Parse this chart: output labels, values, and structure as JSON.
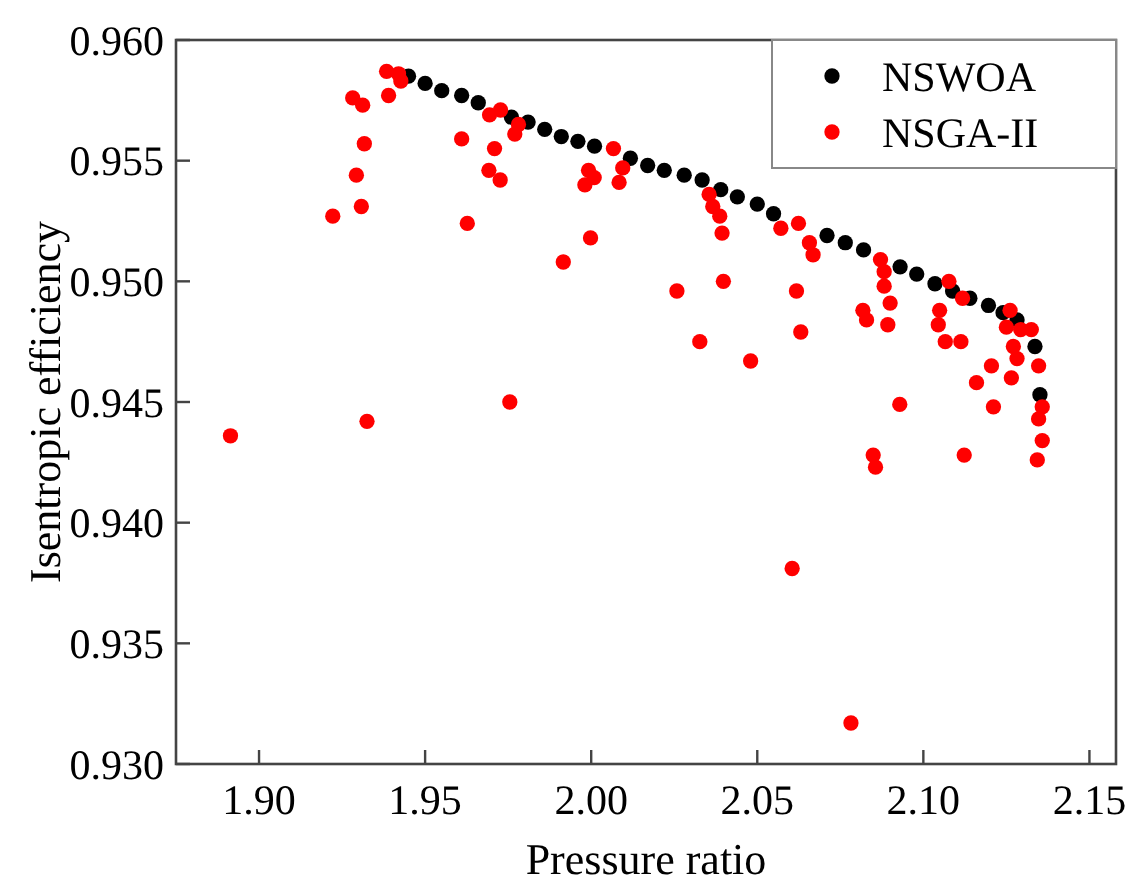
{
  "chart_data": {
    "type": "scatter",
    "xlabel": "Pressure ratio",
    "ylabel": "Isentropic efficiency",
    "xlim": [
      1.875,
      2.158
    ],
    "ylim": [
      0.93,
      0.96
    ],
    "xticks": [
      {
        "value": 1.9,
        "label": "1.90"
      },
      {
        "value": 1.95,
        "label": "1.95"
      },
      {
        "value": 2.0,
        "label": "2.00"
      },
      {
        "value": 2.05,
        "label": "2.05"
      },
      {
        "value": 2.1,
        "label": "2.10"
      },
      {
        "value": 2.15,
        "label": "2.15"
      }
    ],
    "yticks": [
      {
        "value": 0.93,
        "label": "0.930"
      },
      {
        "value": 0.935,
        "label": "0.935"
      },
      {
        "value": 0.94,
        "label": "0.940"
      },
      {
        "value": 0.945,
        "label": "0.945"
      },
      {
        "value": 0.95,
        "label": "0.950"
      },
      {
        "value": 0.955,
        "label": "0.955"
      },
      {
        "value": 0.96,
        "label": "0.960"
      }
    ],
    "grid": false,
    "legend": "top right",
    "marker": "circle",
    "series": [
      {
        "name": "NSWOA",
        "color": "#000000",
        "x": [
          1.945,
          1.95,
          1.955,
          1.961,
          1.966,
          1.976,
          1.981,
          1.986,
          1.991,
          1.996,
          2.001,
          2.0118,
          2.017,
          2.022,
          2.028,
          2.0334,
          2.039,
          2.044,
          2.05,
          2.0549,
          2.071,
          2.0765,
          2.082,
          2.093,
          2.098,
          2.1035,
          2.1088,
          2.114,
          2.1196,
          2.124,
          2.1282,
          2.1336,
          2.1351
        ],
        "values": [
          0.9585,
          0.9582,
          0.9579,
          0.9577,
          0.9574,
          0.9568,
          0.9566,
          0.9563,
          0.956,
          0.9558,
          0.9556,
          0.9551,
          0.9548,
          0.9546,
          0.9544,
          0.9542,
          0.9538,
          0.9535,
          0.9532,
          0.9528,
          0.9519,
          0.9516,
          0.9513,
          0.9506,
          0.9503,
          0.9499,
          0.9496,
          0.9493,
          0.949,
          0.9487,
          0.9484,
          0.9473,
          0.9453
        ]
      },
      {
        "name": "NSGA-II",
        "color": "#ff0000",
        "x": [
          1.8914,
          1.9222,
          1.9282,
          1.9312,
          1.9317,
          1.9293,
          1.9308,
          1.9325,
          1.9384,
          1.939,
          1.9427,
          1.942,
          1.961,
          1.9627,
          1.9709,
          1.9692,
          1.9726,
          1.9694,
          1.9727,
          1.9781,
          1.977,
          1.9755,
          1.9916,
          1.9998,
          1.9981,
          1.9992,
          2.0009,
          2.0067,
          2.0084,
          2.0095,
          2.0355,
          2.0366,
          2.0387,
          2.0394,
          2.0258,
          2.0398,
          2.0327,
          2.048,
          2.0571,
          2.0624,
          2.0657,
          2.0668,
          2.0618,
          2.0631,
          2.0871,
          2.0882,
          2.0882,
          2.09,
          2.0818,
          2.0829,
          2.0893,
          2.1049,
          2.1045,
          2.1066,
          2.1113,
          2.1077,
          2.1118,
          2.1205,
          2.116,
          2.1211,
          2.1265,
          2.0929,
          2.1261,
          2.125,
          2.1293,
          2.1325,
          2.1271,
          2.1282,
          2.1347,
          2.1358,
          2.1347,
          2.1358,
          2.1343,
          2.0849,
          2.0856,
          2.1123,
          2.0605,
          2.0782
        ],
        "values": [
          0.9436,
          0.9527,
          0.9576,
          0.9573,
          0.9557,
          0.9544,
          0.9531,
          0.9442,
          0.9587,
          0.9577,
          0.9583,
          0.9586,
          0.9559,
          0.9524,
          0.9555,
          0.9546,
          0.9542,
          0.9569,
          0.9571,
          0.9565,
          0.9561,
          0.945,
          0.9508,
          0.9518,
          0.954,
          0.9546,
          0.9543,
          0.9555,
          0.9541,
          0.9547,
          0.9536,
          0.9531,
          0.9527,
          0.952,
          0.9496,
          0.95,
          0.9475,
          0.9467,
          0.9522,
          0.9524,
          0.9516,
          0.9511,
          0.9496,
          0.9479,
          0.9509,
          0.9504,
          0.9498,
          0.9491,
          0.9488,
          0.9484,
          0.9482,
          0.9488,
          0.9482,
          0.9475,
          0.9475,
          0.95,
          0.9493,
          0.9465,
          0.9458,
          0.9448,
          0.946,
          0.9449,
          0.9488,
          0.9481,
          0.948,
          0.948,
          0.9473,
          0.9468,
          0.9465,
          0.9448,
          0.9443,
          0.9434,
          0.9426,
          0.9428,
          0.9423,
          0.9428,
          0.9381,
          0.9317
        ]
      }
    ]
  }
}
